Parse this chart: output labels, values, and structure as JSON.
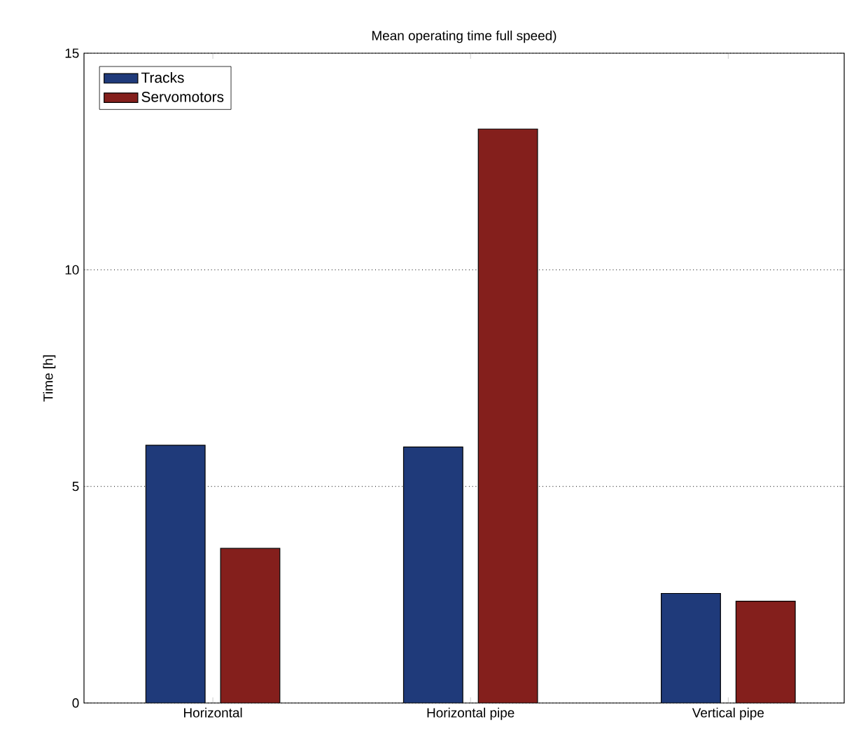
{
  "chart_data": {
    "type": "bar",
    "title": "Mean operating time full speed)",
    "ylabel": "Time [h]",
    "categories": [
      "Horizontal",
      "Horizontal pipe",
      "Vertical pipe"
    ],
    "series": [
      {
        "name": "Tracks",
        "color": "#1f3a7a",
        "values": [
          5.95,
          5.91,
          2.53
        ]
      },
      {
        "name": "Servomotors",
        "color": "#841f1c",
        "values": [
          3.57,
          13.25,
          2.35
        ]
      }
    ],
    "ylim": [
      0,
      15
    ],
    "yticks": [
      0,
      5,
      10,
      15
    ],
    "grid": "y",
    "legend": "top left"
  }
}
